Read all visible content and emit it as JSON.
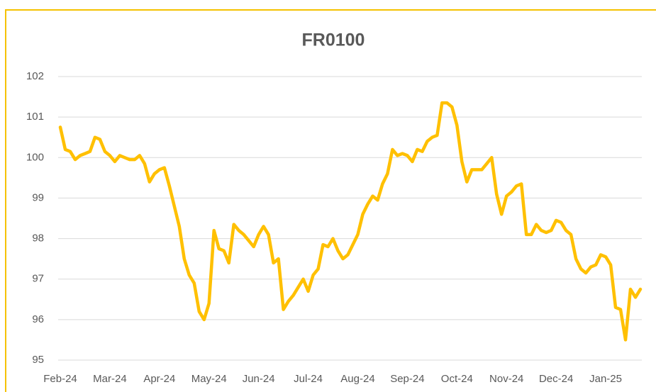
{
  "chart_data": {
    "type": "line",
    "title": "FR0100",
    "categories": [
      "Feb-24",
      null,
      null,
      null,
      null,
      null,
      null,
      null,
      null,
      null,
      "Mar-24",
      null,
      null,
      null,
      null,
      null,
      null,
      null,
      null,
      null,
      "Apr-24",
      null,
      null,
      null,
      null,
      null,
      null,
      null,
      null,
      null,
      "May-24",
      null,
      null,
      null,
      null,
      null,
      null,
      null,
      null,
      null,
      "Jun-24",
      null,
      null,
      null,
      null,
      null,
      null,
      null,
      null,
      null,
      "Jul-24",
      null,
      null,
      null,
      null,
      null,
      null,
      null,
      null,
      null,
      "Aug-24",
      null,
      null,
      null,
      null,
      null,
      null,
      null,
      null,
      null,
      "Sep-24",
      null,
      null,
      null,
      null,
      null,
      null,
      null,
      null,
      null,
      "Oct-24",
      null,
      null,
      null,
      null,
      null,
      null,
      null,
      null,
      null,
      "Nov-24",
      null,
      null,
      null,
      null,
      null,
      null,
      null,
      null,
      null,
      "Dec-24",
      null,
      null,
      null,
      null,
      null,
      null,
      null,
      null,
      null,
      "Jan-25",
      null,
      null,
      null,
      null,
      null,
      null,
      null
    ],
    "values": [
      100.75,
      100.2,
      100.15,
      99.95,
      100.05,
      100.1,
      100.15,
      100.5,
      100.45,
      100.15,
      100.05,
      99.9,
      100.05,
      100.0,
      99.95,
      99.95,
      100.05,
      99.85,
      99.4,
      99.6,
      99.7,
      99.75,
      99.3,
      98.8,
      98.3,
      97.5,
      97.1,
      96.9,
      96.2,
      96.0,
      96.4,
      98.2,
      97.75,
      97.7,
      97.4,
      98.35,
      98.2,
      98.1,
      97.95,
      97.8,
      98.1,
      98.3,
      98.1,
      97.4,
      97.5,
      96.25,
      96.45,
      96.6,
      96.8,
      97.0,
      96.7,
      97.1,
      97.25,
      97.85,
      97.8,
      98.0,
      97.7,
      97.5,
      97.6,
      97.85,
      98.1,
      98.6,
      98.85,
      99.05,
      98.95,
      99.35,
      99.6,
      100.2,
      100.05,
      100.1,
      100.05,
      99.9,
      100.2,
      100.15,
      100.4,
      100.5,
      100.55,
      101.35,
      101.35,
      101.25,
      100.8,
      99.9,
      99.4,
      99.7,
      99.7,
      99.7,
      99.85,
      100.0,
      99.1,
      98.6,
      99.05,
      99.15,
      99.3,
      99.35,
      98.1,
      98.1,
      98.35,
      98.2,
      98.15,
      98.2,
      98.45,
      98.4,
      98.2,
      98.1,
      97.5,
      97.25,
      97.15,
      97.3,
      97.35,
      97.6,
      97.55,
      97.35,
      96.3,
      96.25,
      95.5,
      96.75,
      96.55,
      96.75
    ],
    "color": "#ffc000",
    "ylim": [
      95,
      102
    ],
    "yticks": [
      95,
      96,
      97,
      98,
      99,
      100,
      101,
      102
    ],
    "grid": true
  }
}
